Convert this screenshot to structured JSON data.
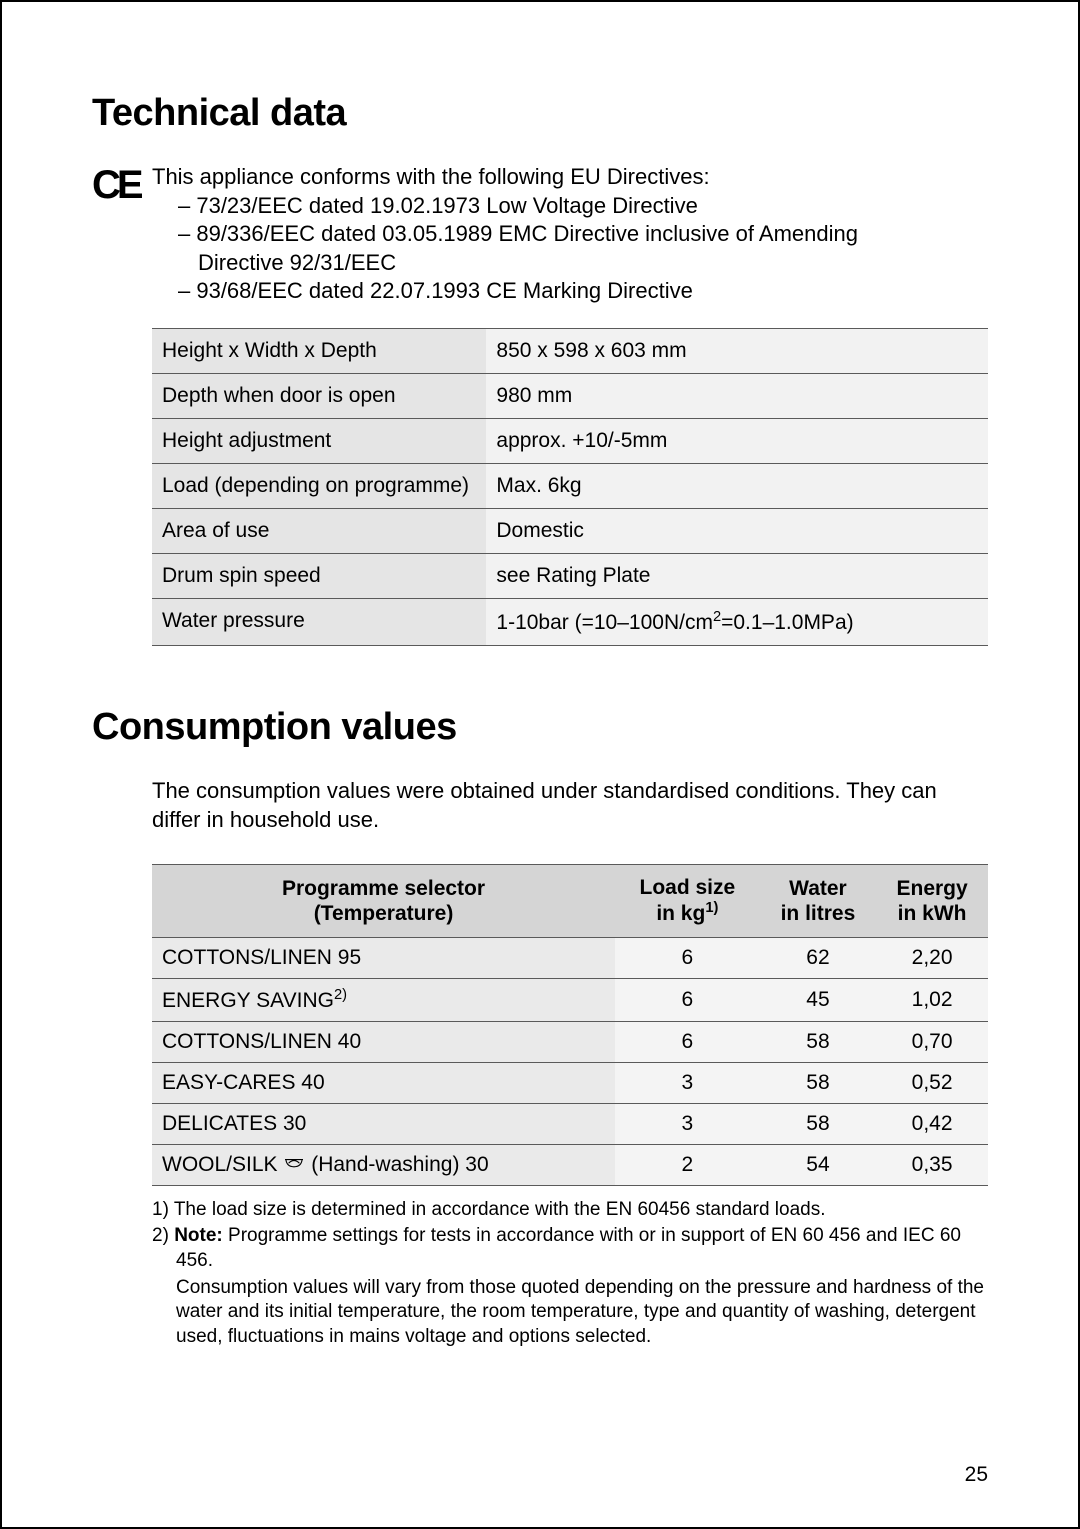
{
  "page_number": "25",
  "heading1": "Technical data",
  "ce_mark": "CE",
  "directives": {
    "intro": "This appliance conforms with the following EU Directives:",
    "items": [
      "– 73/23/EEC dated 19.02.1973 Low Voltage Directive",
      "– 89/336/EEC dated 03.05.1989 EMC Directive inclusive of Amending",
      "Directive 92/31/EEC",
      "– 93/68/EEC dated 22.07.1993 CE Marking Directive"
    ]
  },
  "specs": [
    {
      "label": "Height x Width x Depth",
      "value": "850 x 598 x 603 mm"
    },
    {
      "label": "Depth when door is open",
      "value": "980 mm"
    },
    {
      "label": "Height adjustment",
      "value": "approx. +10/-5mm"
    },
    {
      "label": "Load (depending on programme)",
      "value": "Max. 6kg"
    },
    {
      "label": "Area of use",
      "value": "Domestic"
    },
    {
      "label": "Drum spin speed",
      "value": "see Rating Plate"
    },
    {
      "label": "Water pressure",
      "value_html": "1-10bar (=10–100N/cm<sup>2</sup>=0.1–1.0MPa)"
    }
  ],
  "heading2": "Consumption values",
  "consumption_intro": "The consumption values were obtained under standardised conditions. They can differ in household use.",
  "consumption_table": {
    "headers": {
      "col1_l1": "Programme selector",
      "col1_l2": "(Temperature)",
      "col2_l1": "Load size",
      "col2_l2_html": "in kg<sup>1)</sup>",
      "col3_l1": "Water",
      "col3_l2": "in litres",
      "col4_l1": "Energy",
      "col4_l2": "in kWh"
    },
    "rows": [
      {
        "prog": "COTTONS/LINEN 95",
        "load": "6",
        "water": "62",
        "energy": "2,20"
      },
      {
        "prog_html": "ENERGY SAVING<sup>2)</sup>",
        "load": "6",
        "water": "45",
        "energy": "1,02"
      },
      {
        "prog": "COTTONS/LINEN 40",
        "load": "6",
        "water": "58",
        "energy": "0,70"
      },
      {
        "prog": "EASY-CARES 40",
        "load": "3",
        "water": "58",
        "energy": "0,52"
      },
      {
        "prog": "DELICATES 30",
        "load": "3",
        "water": "58",
        "energy": "0,42"
      },
      {
        "prog_html": "WOOL/SILK <svg class='hand-icon' viewBox='0 0 24 20'><path d='M2 4 L22 4 M3 4 Q4 12 12 12 Q20 12 21 4 M6 8 Q12 2 18 8' fill='none' stroke='#000' stroke-width='1.2'/></svg> (Hand-washing) 30",
        "load": "2",
        "water": "54",
        "energy": "0,35"
      }
    ]
  },
  "footnotes": {
    "fn1": "1) The load size is determined in accordance with the EN 60456 standard loads.",
    "fn2_html": "2) <strong>Note:</strong> Programme settings for tests in accordance with or in support of EN 60 456 and IEC 60 456.",
    "para": "Consumption values will vary from those quoted depending on the pressure and hardness of the water and its initial temperature, the room temperature, type and quantity of washing, detergent used, fluctuations in mains voltage and options selected."
  },
  "colors": {
    "border": "#000000",
    "header_bg": "#d5d5d5",
    "row_label_bg": "#e5e5e5",
    "row_val_bg": "#f2f2f2",
    "line": "#5a5a5a"
  }
}
